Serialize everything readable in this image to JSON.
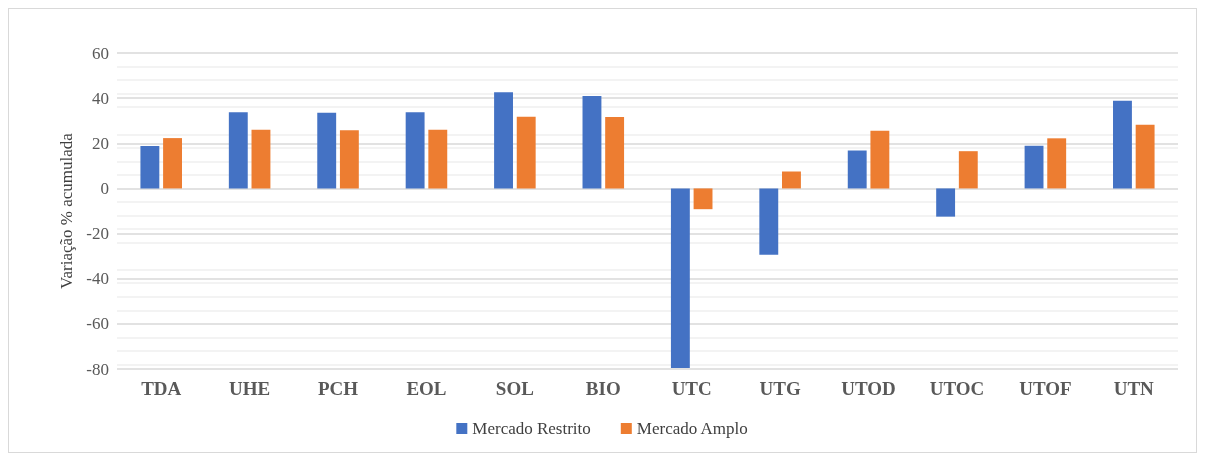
{
  "chart_data": {
    "type": "bar",
    "ylabel": "Variação % acumulada",
    "categories": [
      "TDA",
      "UHE",
      "PCH",
      "EOL",
      "SOL",
      "BIO",
      "UTC",
      "UTG",
      "UTOD",
      "UTOC",
      "UTOF",
      "UTN"
    ],
    "series": [
      {
        "name": "Mercado Restrito",
        "color": "#4472c4",
        "values": [
          18.8,
          33.7,
          33.5,
          33.7,
          42.6,
          41.0,
          -79.6,
          -29.4,
          16.8,
          -12.5,
          18.9,
          38.9
        ]
      },
      {
        "name": "Mercado Amplo",
        "color": "#ed7d31",
        "values": [
          22.3,
          26.0,
          25.8,
          26.0,
          31.8,
          31.7,
          -9.2,
          7.5,
          25.6,
          16.5,
          22.2,
          28.2
        ]
      }
    ],
    "ylim": [
      -80,
      60
    ],
    "yticks": [
      -80,
      -60,
      -40,
      -20,
      0,
      20,
      40,
      60
    ],
    "grid": "y",
    "legend": "bottom"
  }
}
